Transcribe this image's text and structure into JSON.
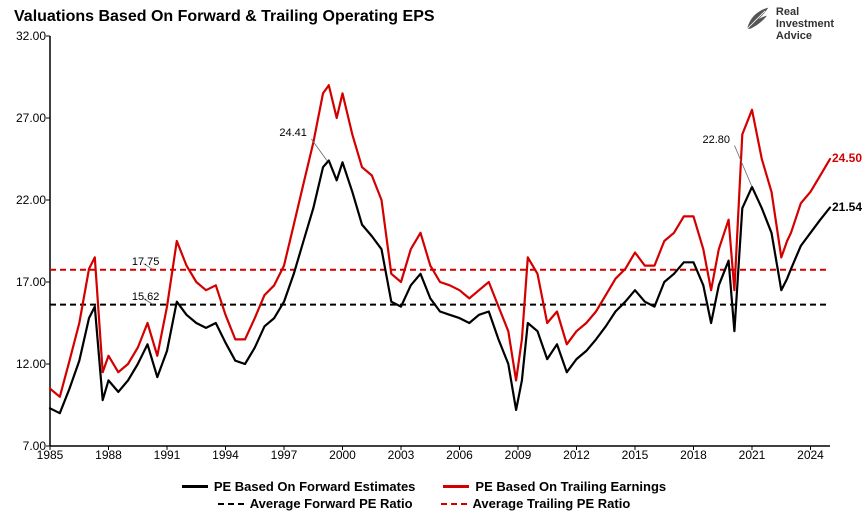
{
  "title": "Valuations  Based On Forward & Trailing Operating EPS",
  "logo": {
    "line1": "Real",
    "line2": "Investment",
    "line3": "Advice"
  },
  "chart": {
    "type": "line",
    "background_color": "#ffffff",
    "axis_color": "#000000",
    "grid_color": "#e0e0e0",
    "title_fontsize": 16,
    "label_fontsize": 12,
    "x": {
      "min": 1985,
      "max": 2025,
      "ticks": [
        1985,
        1988,
        1991,
        1994,
        1997,
        2000,
        2003,
        2006,
        2009,
        2012,
        2015,
        2018,
        2021,
        2024
      ]
    },
    "y": {
      "min": 7.0,
      "max": 32.0,
      "ticks": [
        7.0,
        12.0,
        17.0,
        22.0,
        27.0,
        32.0
      ],
      "tick_format": "0.00"
    },
    "averages": {
      "forward_pe": {
        "value": 15.62,
        "label": "15.62",
        "color": "#000000",
        "dash": "6,4",
        "width": 2
      },
      "trailing_pe": {
        "value": 17.75,
        "label": "17.75",
        "color": "#d40000",
        "dash": "6,4",
        "width": 2
      }
    },
    "annotations": [
      {
        "text": "24.41",
        "x_year": 1998.3,
        "y_val": 25.6,
        "leader_to_x": 1999.2,
        "leader_to_y": 24.41
      },
      {
        "text": "22.80",
        "x_year": 2020.0,
        "y_val": 25.2,
        "leader_to_x": 2021.0,
        "leader_to_y": 22.8
      }
    ],
    "end_labels": {
      "trailing": {
        "text": "24.50",
        "value": 24.5,
        "color": "#d40000"
      },
      "forward": {
        "text": "21.54",
        "value": 21.54,
        "color": "#000000"
      }
    },
    "series": [
      {
        "name": "PE Based On Forward Estimates",
        "color": "#000000",
        "width": 2.2,
        "points": [
          [
            1985.0,
            9.3
          ],
          [
            1985.5,
            9.0
          ],
          [
            1986.0,
            10.5
          ],
          [
            1986.5,
            12.2
          ],
          [
            1987.0,
            14.8
          ],
          [
            1987.3,
            15.5
          ],
          [
            1987.7,
            9.8
          ],
          [
            1988.0,
            11.0
          ],
          [
            1988.5,
            10.3
          ],
          [
            1989.0,
            11.0
          ],
          [
            1989.5,
            12.0
          ],
          [
            1990.0,
            13.2
          ],
          [
            1990.5,
            11.2
          ],
          [
            1991.0,
            12.8
          ],
          [
            1991.5,
            15.8
          ],
          [
            1992.0,
            15.0
          ],
          [
            1992.5,
            14.5
          ],
          [
            1993.0,
            14.2
          ],
          [
            1993.5,
            14.5
          ],
          [
            1994.0,
            13.3
          ],
          [
            1994.5,
            12.2
          ],
          [
            1995.0,
            12.0
          ],
          [
            1995.5,
            13.0
          ],
          [
            1996.0,
            14.3
          ],
          [
            1996.5,
            14.8
          ],
          [
            1997.0,
            15.8
          ],
          [
            1997.5,
            17.5
          ],
          [
            1998.0,
            19.5
          ],
          [
            1998.5,
            21.5
          ],
          [
            1999.0,
            24.0
          ],
          [
            1999.3,
            24.41
          ],
          [
            1999.7,
            23.2
          ],
          [
            2000.0,
            24.3
          ],
          [
            2000.5,
            22.5
          ],
          [
            2001.0,
            20.5
          ],
          [
            2001.5,
            19.8
          ],
          [
            2002.0,
            19.0
          ],
          [
            2002.5,
            15.8
          ],
          [
            2003.0,
            15.5
          ],
          [
            2003.5,
            16.8
          ],
          [
            2004.0,
            17.5
          ],
          [
            2004.5,
            16.0
          ],
          [
            2005.0,
            15.2
          ],
          [
            2005.5,
            15.0
          ],
          [
            2006.0,
            14.8
          ],
          [
            2006.5,
            14.5
          ],
          [
            2007.0,
            15.0
          ],
          [
            2007.5,
            15.2
          ],
          [
            2008.0,
            13.5
          ],
          [
            2008.5,
            12.0
          ],
          [
            2008.9,
            9.2
          ],
          [
            2009.2,
            11.0
          ],
          [
            2009.5,
            14.5
          ],
          [
            2010.0,
            14.0
          ],
          [
            2010.5,
            12.3
          ],
          [
            2011.0,
            13.2
          ],
          [
            2011.5,
            11.5
          ],
          [
            2012.0,
            12.3
          ],
          [
            2012.5,
            12.8
          ],
          [
            2013.0,
            13.5
          ],
          [
            2013.5,
            14.3
          ],
          [
            2014.0,
            15.2
          ],
          [
            2014.5,
            15.8
          ],
          [
            2015.0,
            16.5
          ],
          [
            2015.5,
            15.8
          ],
          [
            2016.0,
            15.5
          ],
          [
            2016.5,
            17.0
          ],
          [
            2017.0,
            17.5
          ],
          [
            2017.5,
            18.2
          ],
          [
            2018.0,
            18.2
          ],
          [
            2018.5,
            16.8
          ],
          [
            2018.9,
            14.5
          ],
          [
            2019.3,
            16.8
          ],
          [
            2019.8,
            18.3
          ],
          [
            2020.1,
            14.0
          ],
          [
            2020.5,
            21.5
          ],
          [
            2021.0,
            22.8
          ],
          [
            2021.5,
            21.5
          ],
          [
            2022.0,
            20.0
          ],
          [
            2022.5,
            16.5
          ],
          [
            2022.8,
            17.2
          ],
          [
            2023.0,
            17.8
          ],
          [
            2023.5,
            19.2
          ],
          [
            2024.0,
            20.0
          ],
          [
            2024.5,
            20.8
          ],
          [
            2025.0,
            21.54
          ]
        ]
      },
      {
        "name": "PE Based On Trailing Earnings",
        "color": "#d40000",
        "width": 2.2,
        "points": [
          [
            1985.0,
            10.5
          ],
          [
            1985.5,
            10.0
          ],
          [
            1986.0,
            12.2
          ],
          [
            1986.5,
            14.5
          ],
          [
            1987.0,
            17.8
          ],
          [
            1987.3,
            18.5
          ],
          [
            1987.7,
            11.5
          ],
          [
            1988.0,
            12.5
          ],
          [
            1988.5,
            11.5
          ],
          [
            1989.0,
            12.0
          ],
          [
            1989.5,
            13.0
          ],
          [
            1990.0,
            14.5
          ],
          [
            1990.5,
            12.5
          ],
          [
            1991.0,
            15.5
          ],
          [
            1991.5,
            19.5
          ],
          [
            1992.0,
            18.0
          ],
          [
            1992.5,
            17.0
          ],
          [
            1993.0,
            16.5
          ],
          [
            1993.5,
            16.8
          ],
          [
            1994.0,
            15.0
          ],
          [
            1994.5,
            13.5
          ],
          [
            1995.0,
            13.5
          ],
          [
            1995.5,
            14.8
          ],
          [
            1996.0,
            16.2
          ],
          [
            1996.5,
            16.8
          ],
          [
            1997.0,
            18.0
          ],
          [
            1997.5,
            20.5
          ],
          [
            1998.0,
            23.0
          ],
          [
            1998.5,
            25.5
          ],
          [
            1999.0,
            28.5
          ],
          [
            1999.3,
            29.0
          ],
          [
            1999.7,
            27.0
          ],
          [
            2000.0,
            28.5
          ],
          [
            2000.5,
            26.0
          ],
          [
            2001.0,
            24.0
          ],
          [
            2001.5,
            23.5
          ],
          [
            2002.0,
            22.0
          ],
          [
            2002.5,
            17.5
          ],
          [
            2003.0,
            17.0
          ],
          [
            2003.5,
            19.0
          ],
          [
            2004.0,
            20.0
          ],
          [
            2004.5,
            18.0
          ],
          [
            2005.0,
            17.0
          ],
          [
            2005.5,
            16.8
          ],
          [
            2006.0,
            16.5
          ],
          [
            2006.5,
            16.0
          ],
          [
            2007.0,
            16.5
          ],
          [
            2007.5,
            17.0
          ],
          [
            2008.0,
            15.5
          ],
          [
            2008.5,
            14.0
          ],
          [
            2008.9,
            11.0
          ],
          [
            2009.2,
            13.5
          ],
          [
            2009.5,
            18.5
          ],
          [
            2010.0,
            17.5
          ],
          [
            2010.5,
            14.5
          ],
          [
            2011.0,
            15.2
          ],
          [
            2011.5,
            13.2
          ],
          [
            2012.0,
            14.0
          ],
          [
            2012.5,
            14.5
          ],
          [
            2013.0,
            15.2
          ],
          [
            2013.5,
            16.2
          ],
          [
            2014.0,
            17.2
          ],
          [
            2014.5,
            17.8
          ],
          [
            2015.0,
            18.8
          ],
          [
            2015.5,
            18.0
          ],
          [
            2016.0,
            18.0
          ],
          [
            2016.5,
            19.5
          ],
          [
            2017.0,
            20.0
          ],
          [
            2017.5,
            21.0
          ],
          [
            2018.0,
            21.0
          ],
          [
            2018.5,
            19.0
          ],
          [
            2018.9,
            16.5
          ],
          [
            2019.3,
            19.0
          ],
          [
            2019.8,
            20.8
          ],
          [
            2020.1,
            16.5
          ],
          [
            2020.5,
            26.0
          ],
          [
            2021.0,
            27.5
          ],
          [
            2021.5,
            24.5
          ],
          [
            2022.0,
            22.5
          ],
          [
            2022.5,
            18.5
          ],
          [
            2022.8,
            19.5
          ],
          [
            2023.0,
            20.0
          ],
          [
            2023.5,
            21.8
          ],
          [
            2024.0,
            22.5
          ],
          [
            2024.5,
            23.5
          ],
          [
            2025.0,
            24.5
          ]
        ]
      }
    ],
    "legend": {
      "row1": [
        {
          "swatch": "line",
          "color": "#000000",
          "label": "PE Based On Forward Estimates"
        },
        {
          "swatch": "line",
          "color": "#d40000",
          "label": "PE Based On Trailing Earnings"
        }
      ],
      "row2": [
        {
          "swatch": "dash",
          "color": "#000000",
          "label": "Average Forward PE Ratio"
        },
        {
          "swatch": "dash",
          "color": "#d40000",
          "label": "Average Trailing PE Ratio"
        }
      ]
    }
  }
}
